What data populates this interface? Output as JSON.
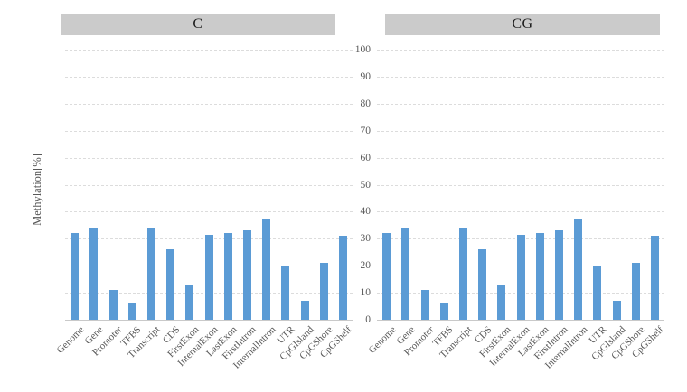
{
  "chart_data": {
    "type": "bar",
    "title": "",
    "ylabel": "Methylation[%]",
    "xlabel": "",
    "ylim": [
      0,
      100
    ],
    "yticks": [
      0,
      10,
      20,
      30,
      40,
      50,
      60,
      70,
      80,
      90,
      100
    ],
    "grid": "horizontal-dashed",
    "legend": "none",
    "bar_color": "#5b9bd5",
    "panel_header_color": "#cbcbcb",
    "categories": [
      "Genome",
      "Gene",
      "Promoter",
      "TFBS",
      "Transcript",
      "CDS",
      "FirstExon",
      "InternalExon",
      "LastExon",
      "FirstIntron",
      "InternalIntron",
      "UTR",
      "CpGIsland",
      "CpGShore",
      "CpGShelf"
    ],
    "series": [
      {
        "name": "C",
        "values": [
          32,
          34,
          11,
          6,
          34,
          26,
          13,
          31.5,
          32,
          33,
          37,
          20,
          7,
          21,
          31
        ]
      },
      {
        "name": "CG",
        "values": [
          32,
          34,
          11,
          6,
          34,
          26,
          13,
          31.5,
          32,
          33,
          37,
          20,
          7,
          21,
          31
        ]
      }
    ]
  }
}
